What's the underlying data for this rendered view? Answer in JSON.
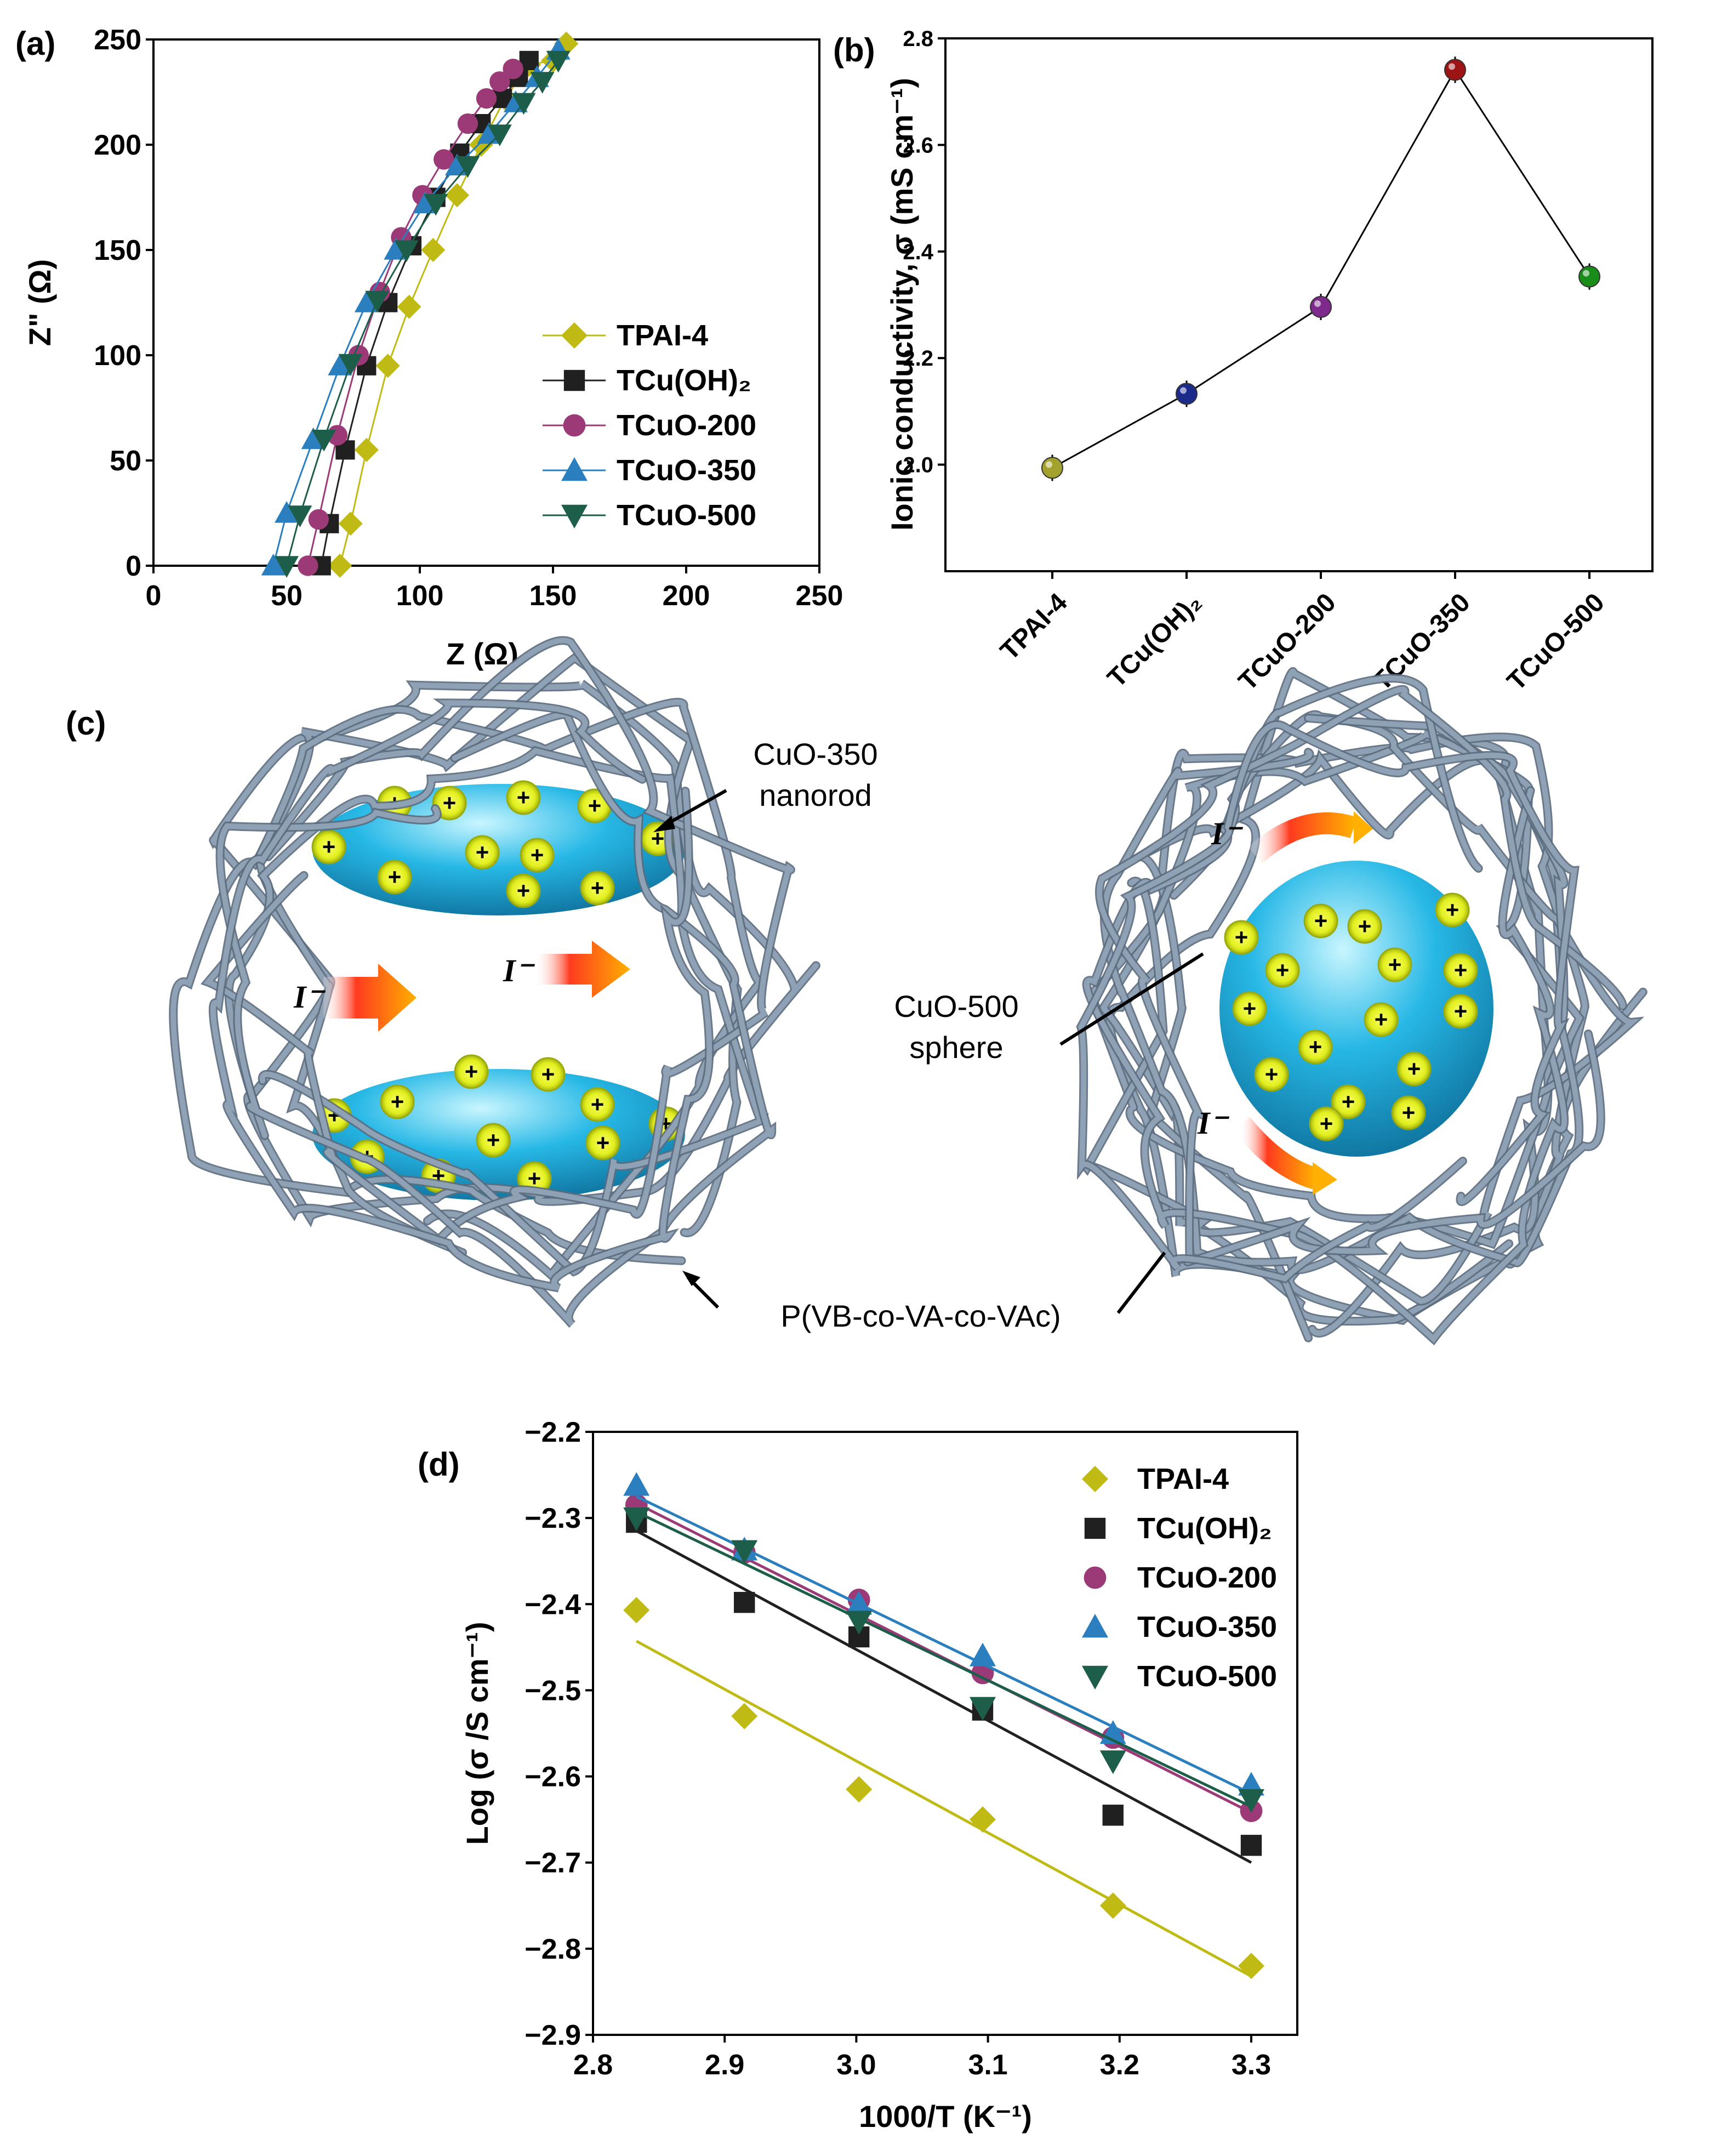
{
  "colors": {
    "TPAI-4": "#c0bb14",
    "TCu(OH)2": "#202020",
    "TCuO-200": "#9c3a78",
    "TCuO-350": "#2b7fbf",
    "TCuO-500": "#1d5e4a",
    "pointB": [
      "#a3a22f",
      "#1c2a8c",
      "#7d2a8c",
      "#9c1414",
      "#1a8c1a"
    ],
    "polymer": "#8fa1b5",
    "particle": "#24a8d6",
    "plus_ring": "#d6e81c"
  },
  "panels": {
    "a": "(a)",
    "b": "(b)",
    "c": "(c)",
    "d": "(d)"
  },
  "chart_data": [
    {
      "id": "a",
      "type": "scatter",
      "xlabel": "Z (Ω)",
      "ylabel": "Z\" (Ω)",
      "xlim": [
        0,
        250
      ],
      "ylim": [
        0,
        250
      ],
      "xticks": [
        "0",
        "50",
        "100",
        "150",
        "200",
        "250"
      ],
      "yticks": [
        "0",
        "50",
        "100",
        "150",
        "200",
        "250"
      ],
      "legend_position": "bottom-right",
      "series": [
        {
          "name": "TPAI-4",
          "marker": "diamond",
          "x": [
            70,
            74,
            80,
            88,
            96,
            105,
            114,
            123,
            132,
            141,
            150,
            155
          ],
          "y": [
            0,
            20,
            55,
            95,
            123,
            150,
            176,
            200,
            222,
            238,
            240,
            248
          ]
        },
        {
          "name": "TCu(OH)₂",
          "marker": "square",
          "x": [
            63,
            66,
            72,
            80,
            88,
            97,
            106,
            115,
            123,
            131,
            137,
            141
          ],
          "y": [
            0,
            20,
            55,
            95,
            125,
            152,
            175,
            196,
            210,
            222,
            232,
            240
          ]
        },
        {
          "name": "TCuO-200",
          "marker": "circle",
          "x": [
            58,
            62,
            69,
            77,
            85,
            93,
            101,
            109,
            118,
            125,
            130,
            135
          ],
          "y": [
            0,
            22,
            62,
            100,
            130,
            156,
            176,
            193,
            210,
            222,
            230,
            236
          ]
        },
        {
          "name": "TCuO-350",
          "marker": "triangle-up",
          "x": [
            45,
            50,
            60,
            70,
            80,
            91,
            102,
            114,
            126,
            136,
            144,
            152
          ],
          "y": [
            0,
            25,
            60,
            95,
            125,
            150,
            172,
            190,
            205,
            220,
            232,
            245
          ]
        },
        {
          "name": "TCuO-500",
          "marker": "triangle-down",
          "x": [
            50,
            55,
            64,
            74,
            84,
            95,
            106,
            118,
            130,
            139,
            146,
            152
          ],
          "y": [
            0,
            24,
            60,
            96,
            126,
            150,
            172,
            190,
            205,
            220,
            230,
            240
          ]
        }
      ]
    },
    {
      "id": "b",
      "type": "line",
      "ylabel": "Ionic conductivity, σ (mS cm⁻¹)",
      "categories": [
        "TPAI-4",
        "TCu(OH)₂",
        "TCuO-200",
        "TCuO-350",
        "TCuO-500"
      ],
      "values": [
        1.994,
        2.133,
        2.296,
        2.741,
        2.353
      ],
      "ylim": [
        1.8,
        2.8
      ],
      "yticks": [
        "2.0",
        "2.2",
        "2.4",
        "2.6",
        "2.8"
      ]
    },
    {
      "id": "d",
      "type": "scatter",
      "xlabel": "1000/T (K⁻¹)",
      "ylabel": "Log (σ /S cm⁻¹)",
      "xlim": [
        2.8,
        3.3
      ],
      "ylim": [
        -2.9,
        -2.2
      ],
      "xticks": [
        "2.8",
        "2.9",
        "3.0",
        "3.1",
        "3.2",
        "3.3"
      ],
      "yticks": [
        "−2.2",
        "−2.3",
        "−2.4",
        "−2.5",
        "−2.6",
        "−2.7",
        "−2.8",
        "−2.9"
      ],
      "legend_position": "top-right",
      "x": [
        2.833,
        2.915,
        3.002,
        3.096,
        3.195,
        3.3
      ],
      "series": [
        {
          "name": "TPAI-4",
          "marker": "diamond",
          "values": [
            -2.407,
            -2.53,
            -2.615,
            -2.65,
            -2.75,
            -2.82
          ],
          "fit": [
            -2.443,
            -2.832
          ]
        },
        {
          "name": "TCu(OH)₂",
          "marker": "square",
          "values": [
            -2.305,
            -2.398,
            -2.438,
            -2.523,
            -2.645,
            -2.68
          ],
          "fit": [
            -2.315,
            -2.7
          ]
        },
        {
          "name": "TCuO-200",
          "marker": "circle",
          "values": [
            -2.285,
            -2.34,
            -2.395,
            -2.48,
            -2.555,
            -2.64
          ],
          "fit": [
            -2.283,
            -2.642
          ]
        },
        {
          "name": "TCuO-350",
          "marker": "triangle-up",
          "values": [
            -2.262,
            -2.337,
            -2.4,
            -2.46,
            -2.55,
            -2.61
          ],
          "fit": [
            -2.275,
            -2.62
          ]
        },
        {
          "name": "TCuO-500",
          "marker": "triangle-down",
          "values": [
            -2.3,
            -2.338,
            -2.42,
            -2.52,
            -2.582,
            -2.627
          ],
          "fit": [
            -2.293,
            -2.635
          ]
        }
      ]
    }
  ],
  "schematic": {
    "label_nanorod_1": "CuO-350",
    "label_nanorod_2": "nanorod",
    "label_sphere_1": "CuO-500",
    "label_sphere_2": "sphere",
    "label_polymer": "P(VB-co-VA-co-VAc)",
    "ion_label": "I⁻",
    "plus_sign": "+"
  }
}
